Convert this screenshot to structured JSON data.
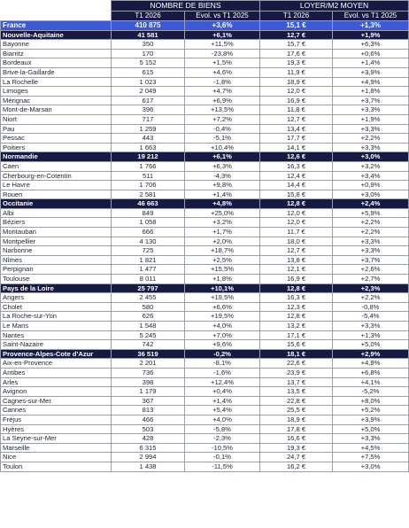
{
  "header": {
    "group_biens": "NOMBRE DE BIENS",
    "group_loyer": "LOYER/M2 MOYEN",
    "col_t1": "T1 2026",
    "col_evol": "Evol. vs T1 2025"
  },
  "france": {
    "name": "France",
    "biens": "410 875",
    "biens_evol": "+3,6%",
    "loyer": "15,1 €",
    "loyer_evol": "+1,3%"
  },
  "regions": [
    {
      "name": "Nouvelle-Aquitaine",
      "biens": "41 581",
      "biens_evol": "+6,1%",
      "loyer": "12,7 €",
      "loyer_evol": "+1,9%",
      "cities": [
        {
          "name": "Bayonne",
          "biens": "350",
          "biens_evol": "+11,5%",
          "loyer": "15,7 €",
          "loyer_evol": "+6,3%"
        },
        {
          "name": "Biarritz",
          "biens": "170",
          "biens_evol": "-23,8%",
          "loyer": "17,6 €",
          "loyer_evol": "+0,6%"
        },
        {
          "name": "Bordeaux",
          "biens": "5 152",
          "biens_evol": "+1,5%",
          "loyer": "19,3 €",
          "loyer_evol": "+1,4%"
        },
        {
          "name": "Brive-la-Gaillarde",
          "biens": "615",
          "biens_evol": "+4,6%",
          "loyer": "11,9 €",
          "loyer_evol": "+3,9%"
        },
        {
          "name": "La Rochelle",
          "biens": "1 023",
          "biens_evol": "-1,8%",
          "loyer": "18,9 €",
          "loyer_evol": "+4,9%"
        },
        {
          "name": "Limoges",
          "biens": "2 049",
          "biens_evol": "+4,7%",
          "loyer": "12,0 €",
          "loyer_evol": "+1,8%"
        },
        {
          "name": "Mérignac",
          "biens": "617",
          "biens_evol": "+6,9%",
          "loyer": "16,9 €",
          "loyer_evol": "+3,7%"
        },
        {
          "name": "Mont-de-Marsan",
          "biens": "396",
          "biens_evol": "+13,5%",
          "loyer": "11,8 €",
          "loyer_evol": "+3,3%"
        },
        {
          "name": "Niort",
          "biens": "717",
          "biens_evol": "+7,2%",
          "loyer": "12,7 €",
          "loyer_evol": "+1,9%"
        },
        {
          "name": "Pau",
          "biens": "1 259",
          "biens_evol": "-0,4%",
          "loyer": "13,4 €",
          "loyer_evol": "+3,3%"
        },
        {
          "name": "Pessac",
          "biens": "443",
          "biens_evol": "-5,1%",
          "loyer": "17,7 €",
          "loyer_evol": "+2,2%"
        },
        {
          "name": "Poitiers",
          "biens": "1 663",
          "biens_evol": "+10,4%",
          "loyer": "14,1 €",
          "loyer_evol": "+3,3%"
        }
      ]
    },
    {
      "name": "Normandie",
      "biens": "19 212",
      "biens_evol": "+6,1%",
      "loyer": "12,6 €",
      "loyer_evol": "+3,0%",
      "cities": [
        {
          "name": "Caen",
          "biens": "1 766",
          "biens_evol": "+6,3%",
          "loyer": "16,3 €",
          "loyer_evol": "+3,2%"
        },
        {
          "name": "Cherbourg-en-Cotentin",
          "biens": "511",
          "biens_evol": "-4,3%",
          "loyer": "12,4 €",
          "loyer_evol": "+3,4%"
        },
        {
          "name": "Le Havre",
          "biens": "1 706",
          "biens_evol": "+9,8%",
          "loyer": "14,4 €",
          "loyer_evol": "+0,9%"
        },
        {
          "name": "Rouen",
          "biens": "2 581",
          "biens_evol": "+1,4%",
          "loyer": "15,8 €",
          "loyer_evol": "+3,0%"
        }
      ]
    },
    {
      "name": "Occitanie",
      "biens": "46 663",
      "biens_evol": "+4,8%",
      "loyer": "12,8 €",
      "loyer_evol": "+2,4%",
      "cities": [
        {
          "name": "Albi",
          "biens": "849",
          "biens_evol": "+25,0%",
          "loyer": "12,0 €",
          "loyer_evol": "+5,9%"
        },
        {
          "name": "Béziers",
          "biens": "1 058",
          "biens_evol": "+3,2%",
          "loyer": "12,0 €",
          "loyer_evol": "+2,2%"
        },
        {
          "name": "Montauban",
          "biens": "666",
          "biens_evol": "+1,7%",
          "loyer": "11,7 €",
          "loyer_evol": "+2,2%"
        },
        {
          "name": "Montpellier",
          "biens": "4 130",
          "biens_evol": "+2,0%",
          "loyer": "18,0 €",
          "loyer_evol": "+3,3%"
        },
        {
          "name": "Narbonne",
          "biens": "725",
          "biens_evol": "+18,7%",
          "loyer": "12,7 €",
          "loyer_evol": "+3,3%"
        },
        {
          "name": "Nîmes",
          "biens": "1 821",
          "biens_evol": "+2,5%",
          "loyer": "13,8 €",
          "loyer_evol": "+3,7%"
        },
        {
          "name": "Perpignan",
          "biens": "1 477",
          "biens_evol": "+15,5%",
          "loyer": "12,1 €",
          "loyer_evol": "+2,6%"
        },
        {
          "name": "Toulouse",
          "biens": "8 011",
          "biens_evol": "+1,8%",
          "loyer": "16,9 €",
          "loyer_evol": "+2,7%"
        }
      ]
    },
    {
      "name": "Pays de la Loire",
      "biens": "25 797",
      "biens_evol": "+10,1%",
      "loyer": "12,8 €",
      "loyer_evol": "+2,3%",
      "cities": [
        {
          "name": "Angers",
          "biens": "2 455",
          "biens_evol": "+19,5%",
          "loyer": "16,3 €",
          "loyer_evol": "+2,2%"
        },
        {
          "name": "Cholet",
          "biens": "580",
          "biens_evol": "+6,6%",
          "loyer": "12,3 €",
          "loyer_evol": "-0,8%"
        },
        {
          "name": "La Roche-sur-Yon",
          "biens": "626",
          "biens_evol": "+19,5%",
          "loyer": "12,8 €",
          "loyer_evol": "-5,4%"
        },
        {
          "name": "Le Mans",
          "biens": "1 548",
          "biens_evol": "+4,0%",
          "loyer": "13,2 €",
          "loyer_evol": "+3,3%"
        },
        {
          "name": "Nantes",
          "biens": "5 245",
          "biens_evol": "+7,0%",
          "loyer": "17,1 €",
          "loyer_evol": "+1,3%"
        },
        {
          "name": "Saint-Nazaire",
          "biens": "742",
          "biens_evol": "+9,6%",
          "loyer": "15,6 €",
          "loyer_evol": "+5,0%"
        }
      ]
    },
    {
      "name": "Provence-Alpes-Cote d'Azur",
      "biens": "36 519",
      "biens_evol": "-0,2%",
      "loyer": "18,1 €",
      "loyer_evol": "+2,9%",
      "cities": [
        {
          "name": "Aix-en-Provence",
          "biens": "2 201",
          "biens_evol": "-8,1%",
          "loyer": "22,6 €",
          "loyer_evol": "+4,8%"
        },
        {
          "name": "Antibes",
          "biens": "736",
          "biens_evol": "-1,6%",
          "loyer": "23,9 €",
          "loyer_evol": "+6,8%"
        },
        {
          "name": "Arles",
          "biens": "398",
          "biens_evol": "+12,4%",
          "loyer": "13,7 €",
          "loyer_evol": "+4,1%"
        },
        {
          "name": "Avignon",
          "biens": "1 179",
          "biens_evol": "+0,4%",
          "loyer": "13,5 €",
          "loyer_evol": "-5,2%"
        },
        {
          "name": "Cagnes-sur-Mer",
          "biens": "367",
          "biens_evol": "+1,4%",
          "loyer": "22,8 €",
          "loyer_evol": "+8,0%"
        },
        {
          "name": "Cannes",
          "biens": "813",
          "biens_evol": "+5,4%",
          "loyer": "25,5 €",
          "loyer_evol": "+5,2%"
        },
        {
          "name": "Fréjus",
          "biens": "466",
          "biens_evol": "+4,0%",
          "loyer": "18,9 €",
          "loyer_evol": "+3,9%"
        },
        {
          "name": "Hyères",
          "biens": "503",
          "biens_evol": "-5,8%",
          "loyer": "17,8 €",
          "loyer_evol": "+5,0%"
        },
        {
          "name": "La Seyne-sur-Mer",
          "biens": "428",
          "biens_evol": "-2,3%",
          "loyer": "16,6 €",
          "loyer_evol": "+3,3%"
        },
        {
          "name": "Marseille",
          "biens": "6 315",
          "biens_evol": "-10,5%",
          "loyer": "19,3 €",
          "loyer_evol": "+4,5%"
        },
        {
          "name": "Nice",
          "biens": "2 994",
          "biens_evol": "-0,1%",
          "loyer": "24,7 €",
          "loyer_evol": "+7,5%"
        },
        {
          "name": "Toulon",
          "biens": "1 438",
          "biens_evol": "-11,5%",
          "loyer": "16,2 €",
          "loyer_evol": "+3,0%"
        }
      ]
    }
  ],
  "colors": {
    "header_navy": "#171a45",
    "france_blue": "#3b5ad6",
    "border": "#9a9eab"
  }
}
